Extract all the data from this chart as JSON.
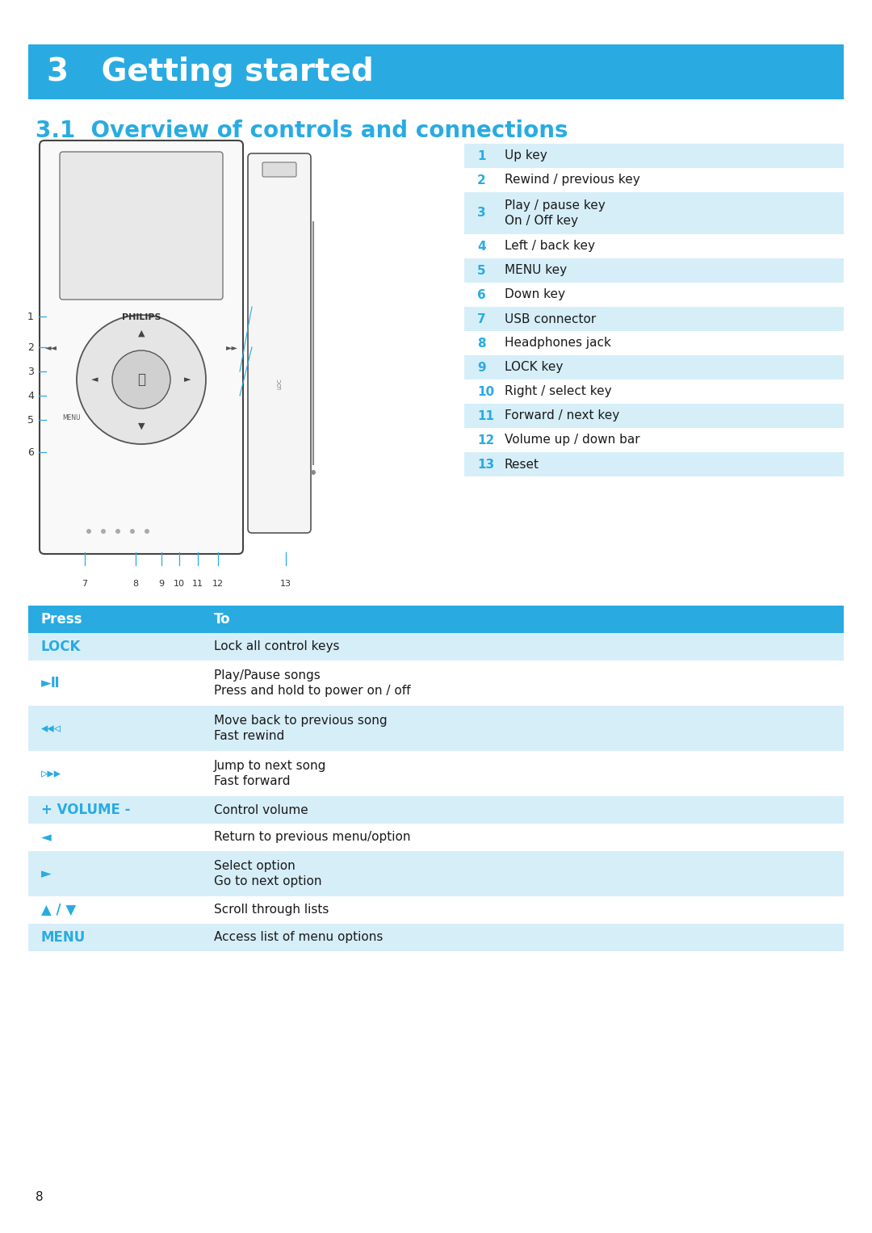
{
  "bg_color": "#ffffff",
  "header_bg": "#29abe2",
  "header_text": "3   Getting started",
  "header_text_color": "#ffffff",
  "header_fontsize": 28,
  "subheader_text": "3.1  Overview of controls and connections",
  "subheader_color": "#29abe2",
  "subheader_fontsize": 20,
  "table1_bg_light": "#d6eef8",
  "table1_bg_white": "#ffffff",
  "table2_header_bg": "#29abe2",
  "table2_header_text_color": "#ffffff",
  "table2_row_light": "#d6eef8",
  "table2_row_white": "#ffffff",
  "blue_text": "#29abe2",
  "black_text": "#1a1a1a",
  "controls": [
    {
      "num": "1",
      "desc": "Up key",
      "double": false
    },
    {
      "num": "2",
      "desc": "Rewind / previous key",
      "double": false
    },
    {
      "num": "3",
      "desc": "Play / pause key\nOn / Off key",
      "double": true
    },
    {
      "num": "4",
      "desc": "Left / back key",
      "double": false
    },
    {
      "num": "5",
      "desc": "MENU key",
      "double": false
    },
    {
      "num": "6",
      "desc": "Down key",
      "double": false
    },
    {
      "num": "7",
      "desc": "USB connector",
      "double": false
    },
    {
      "num": "8",
      "desc": "Headphones jack",
      "double": false
    },
    {
      "num": "9",
      "desc": "LOCK key",
      "double": false
    },
    {
      "num": "10",
      "desc": "Right / select key",
      "double": false
    },
    {
      "num": "11",
      "desc": "Forward / next key",
      "double": false
    },
    {
      "num": "12",
      "desc": "Volume up / down bar",
      "double": false
    },
    {
      "num": "13",
      "desc": "Reset",
      "double": false
    }
  ],
  "press_col_header": "Press",
  "to_col_header": "To",
  "press_rows": [
    {
      "press": "LOCK",
      "to": "Lock all control keys",
      "double": false
    },
    {
      "press": "►Ⅱ",
      "to": "Play/Pause songs\nPress and hold to power on / off",
      "double": true
    },
    {
      "press": "◂◂◃",
      "to": "Move back to previous song\nFast rewind",
      "double": true
    },
    {
      "press": "▹▸▸",
      "to": "Jump to next song\nFast forward",
      "double": true
    },
    {
      "press": "+ VOLUME -",
      "to": "Control volume",
      "double": false
    },
    {
      "press": "◄",
      "to": "Return to previous menu/option",
      "double": false
    },
    {
      "press": "►",
      "to": "Select option\nGo to next option",
      "double": true
    },
    {
      "press": "▲ / ▼",
      "to": "Scroll through lists",
      "double": false
    },
    {
      "press": "MENU",
      "to": "Access list of menu options",
      "double": false
    }
  ],
  "page_number": "8"
}
